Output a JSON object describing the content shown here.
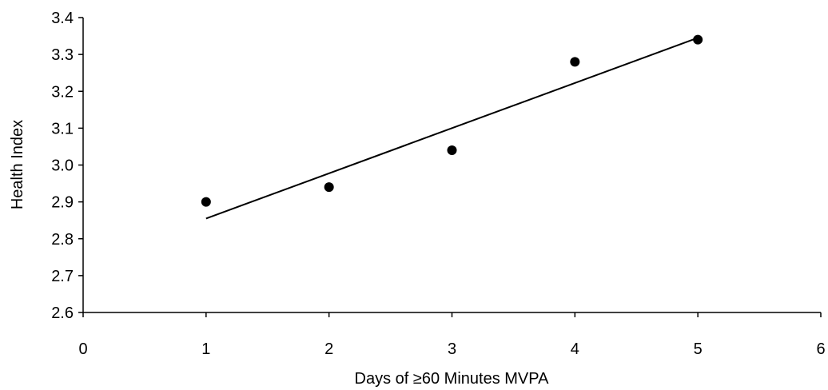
{
  "chart_data": {
    "type": "scatter",
    "title": "",
    "xlabel": "Days of ≥60 Minutes MVPA",
    "ylabel": "Health Index",
    "xlim": [
      0,
      6
    ],
    "ylim": [
      2.6,
      3.4
    ],
    "x_ticks": [
      "0",
      "1",
      "2",
      "3",
      "4",
      "5",
      "6"
    ],
    "y_ticks": [
      "2.6",
      "2.7",
      "2.8",
      "2.9",
      "3.0",
      "3.1",
      "3.2",
      "3.3",
      "3.4"
    ],
    "grid": false,
    "legend": "none",
    "points": [
      {
        "x": 1,
        "y": 2.9
      },
      {
        "x": 2,
        "y": 2.94
      },
      {
        "x": 3,
        "y": 3.04
      },
      {
        "x": 4,
        "y": 3.28
      },
      {
        "x": 5,
        "y": 3.34
      }
    ],
    "trendline": {
      "x_start": 1,
      "y_start": 2.855,
      "x_end": 5,
      "y_end": 3.345
    },
    "colors": {
      "marker": "#000000",
      "line": "#000000",
      "axis": "#000000"
    }
  }
}
